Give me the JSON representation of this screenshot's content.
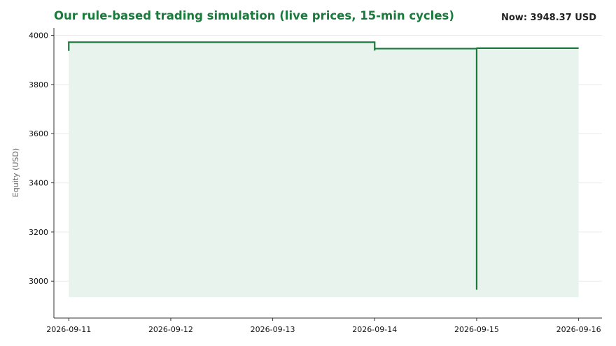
{
  "title": "Our rule-based trading simulation (live prices, 15-min cycles)",
  "now_label": "Now: 3948.37 USD",
  "colors": {
    "accent": "#1a7a3c",
    "fill": "#e8f3ed",
    "grid": "#ebebeb",
    "axis": "#333333",
    "ylabel": "#666666"
  },
  "chart_data": {
    "type": "line",
    "title": "Our rule-based trading simulation (live prices, 15-min cycles)",
    "ylabel": "Equity (USD)",
    "xlabel": "",
    "ylim": [
      2850,
      4030
    ],
    "xlim": [
      "2026-09-10T20:30",
      "2026-09-16T05:30"
    ],
    "yticks": [
      3000,
      3200,
      3400,
      3600,
      3800,
      4000
    ],
    "xticks": [
      "2026-09-11",
      "2026-09-12",
      "2026-09-13",
      "2026-09-14",
      "2026-09-15",
      "2026-09-16"
    ],
    "fill_baseline": 2935,
    "grid": "horizontal",
    "series": [
      {
        "points": [
          [
            "2026-09-11T00:00",
            3975
          ],
          [
            "2026-09-11T00:00",
            3937
          ],
          [
            "2026-09-11T00:00",
            3972
          ],
          [
            "2026-09-14T00:00",
            3972
          ],
          [
            "2026-09-14T00:00",
            3938
          ],
          [
            "2026-09-14T00:00",
            3946
          ],
          [
            "2026-09-15T00:00",
            3946
          ],
          [
            "2026-09-15T00:00",
            2965
          ],
          [
            "2026-09-15T00:00",
            3950
          ],
          [
            "2026-09-15T00:00",
            3948
          ],
          [
            "2026-09-16T00:00",
            3948
          ]
        ]
      }
    ]
  }
}
